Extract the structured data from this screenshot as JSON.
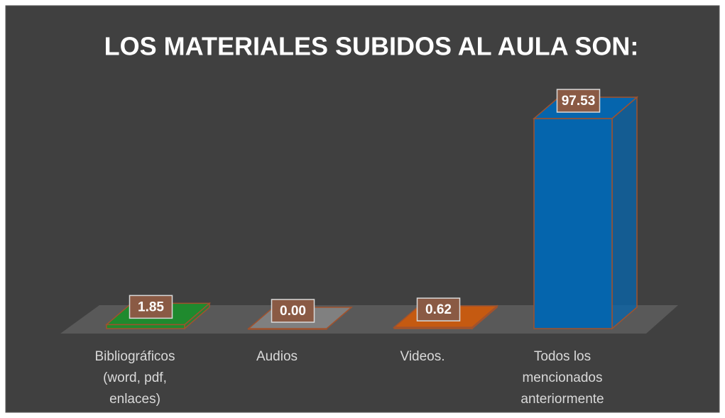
{
  "chart_data": {
    "type": "bar3d",
    "title": "LOS MATERIALES SUBIDOS AL AULA SON:",
    "categories": [
      "Bibliográficos (word, pdf, enlaces)",
      "Audios",
      "Videos.",
      "Todos los mencionados anteriormente"
    ],
    "values": [
      1.85,
      0.0,
      0.62,
      97.53
    ],
    "value_labels": [
      "1.85",
      "0.00",
      "0.62",
      "97.53"
    ],
    "colors": [
      "#1f8a2e",
      "#808080",
      "#c55a11",
      "#0565ad"
    ]
  }
}
